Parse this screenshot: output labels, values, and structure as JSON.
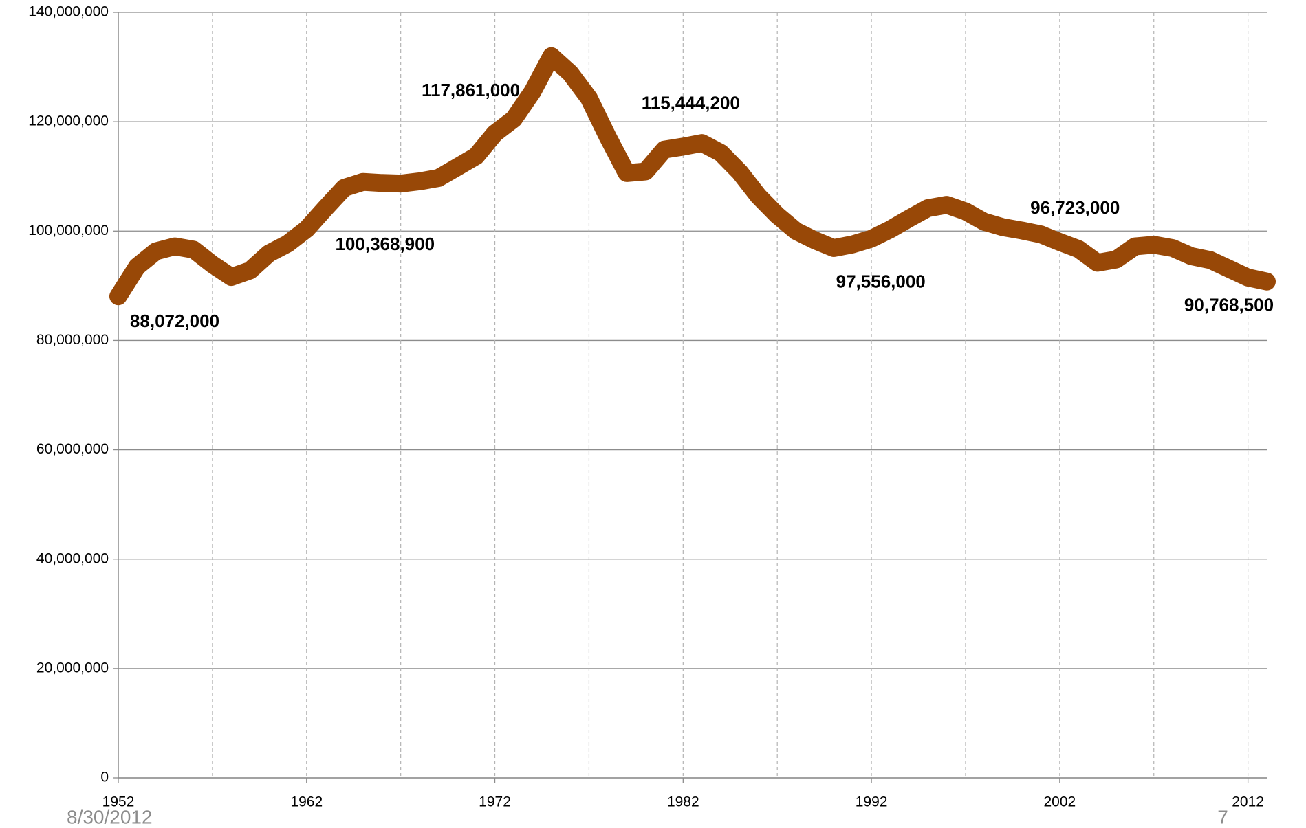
{
  "chart_data": {
    "type": "line",
    "x": [
      1952,
      1953,
      1954,
      1955,
      1956,
      1957,
      1958,
      1959,
      1960,
      1961,
      1962,
      1963,
      1964,
      1965,
      1966,
      1967,
      1968,
      1969,
      1970,
      1971,
      1972,
      1973,
      1974,
      1975,
      1976,
      1977,
      1978,
      1979,
      1980,
      1981,
      1982,
      1983,
      1984,
      1985,
      1986,
      1987,
      1988,
      1989,
      1990,
      1991,
      1992,
      1993,
      1994,
      1995,
      1996,
      1997,
      1998,
      1999,
      2000,
      2001,
      2002,
      2003,
      2004,
      2005,
      2006,
      2007,
      2008,
      2009,
      2010,
      2011,
      2012,
      2013
    ],
    "series": [
      {
        "name": null,
        "color": "#984807",
        "values": [
          88072000,
          93500000,
          96300000,
          97200000,
          96600000,
          93900000,
          91600000,
          92800000,
          95900000,
          97700000,
          100368900,
          104200000,
          107900000,
          109000000,
          108800000,
          108700000,
          109100000,
          109700000,
          111700000,
          113700000,
          117861000,
          120500000,
          125500000,
          132000000,
          128900000,
          124300000,
          117200000,
          110600000,
          110900000,
          114900000,
          115444200,
          116100000,
          114300000,
          110800000,
          106400000,
          102900000,
          100000000,
          98300000,
          96900000,
          97556000,
          98600000,
          100300000,
          102300000,
          104200000,
          104800000,
          103600000,
          101700000,
          100700000,
          100100000,
          99400000,
          98000000,
          96723000,
          94200000,
          94800000,
          97200000,
          97500000,
          96900000,
          95400000,
          94700000,
          93100000,
          91500000,
          90768500
        ],
        "value_labels": [
          "88,072,000",
          null,
          null,
          null,
          null,
          null,
          null,
          null,
          null,
          null,
          "100,368,900",
          null,
          null,
          null,
          null,
          null,
          null,
          null,
          null,
          null,
          "117,861,000",
          null,
          null,
          null,
          null,
          null,
          null,
          null,
          null,
          null,
          "115,444,200",
          null,
          null,
          null,
          null,
          null,
          null,
          null,
          null,
          "97,556,000",
          null,
          null,
          null,
          null,
          null,
          null,
          null,
          null,
          null,
          null,
          null,
          "96,723,000",
          null,
          null,
          null,
          null,
          null,
          null,
          null,
          null,
          null,
          "90,768,500"
        ]
      }
    ],
    "xlim": [
      1952,
      2013
    ],
    "xticks": [
      1952,
      1962,
      1972,
      1982,
      1992,
      2002,
      2012
    ],
    "x_minor_ticks": [
      1957,
      1967,
      1977,
      1987,
      1997,
      2007
    ],
    "ylim": [
      0,
      140000000
    ],
    "yticks": [
      0,
      {
        "value": 20000000,
        "label": "20,000,000"
      },
      {
        "value": 40000000,
        "label": "40,000,000"
      },
      {
        "value": 60000000,
        "label": "60,000,000"
      },
      {
        "value": 80000000,
        "label": "80,000,000"
      },
      {
        "value": 100000000,
        "label": "100,000,000"
      },
      {
        "value": 120000000,
        "label": "120,000,000"
      },
      {
        "value": 140000000,
        "label": "140,000,000"
      }
    ],
    "grid": true
  },
  "footer": {
    "date": "8/30/2012",
    "page": "7"
  }
}
